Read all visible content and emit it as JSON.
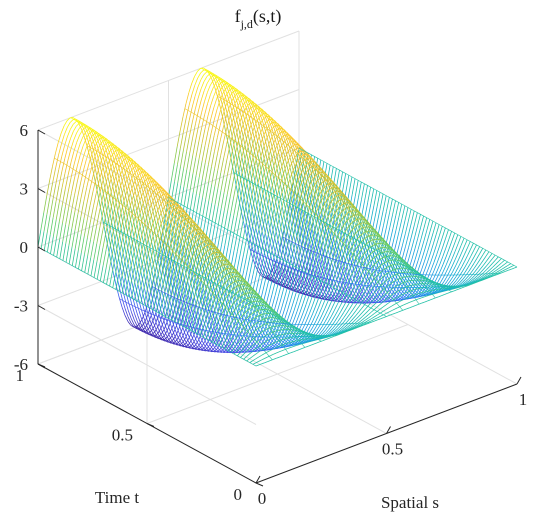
{
  "chart_data": {
    "type": "surface",
    "title": {
      "prefix": "f",
      "subscript": "j,d",
      "suffix": "(s,t)"
    },
    "xlabel": "Spatial s",
    "ylabel": "Time t",
    "zlabel": "",
    "xlim": [
      0,
      1
    ],
    "ylim": [
      0,
      1
    ],
    "zlim": [
      -6,
      6
    ],
    "xticks": [
      "0",
      "0.5",
      "1"
    ],
    "yticks": [
      "0",
      "0.5",
      "1"
    ],
    "zticks": [
      "6",
      "3",
      "0",
      "-3",
      "-6"
    ],
    "colormap": "parula",
    "grid": true,
    "style": "mesh",
    "function": "approximately 6 * sin(4*pi*s) * sin(pi*t/2)",
    "sample_points": [
      {
        "s": 0,
        "t": 1,
        "f": 0
      },
      {
        "s": 0.125,
        "t": 1,
        "f": 6
      },
      {
        "s": 0.375,
        "t": 1,
        "f": -6
      },
      {
        "s": 0.625,
        "t": 1,
        "f": 6
      },
      {
        "s": 0.875,
        "t": 1,
        "f": -6
      },
      {
        "s": 1,
        "t": 1,
        "f": 0
      },
      {
        "s": 0.5,
        "t": 0,
        "f": 0
      }
    ]
  }
}
